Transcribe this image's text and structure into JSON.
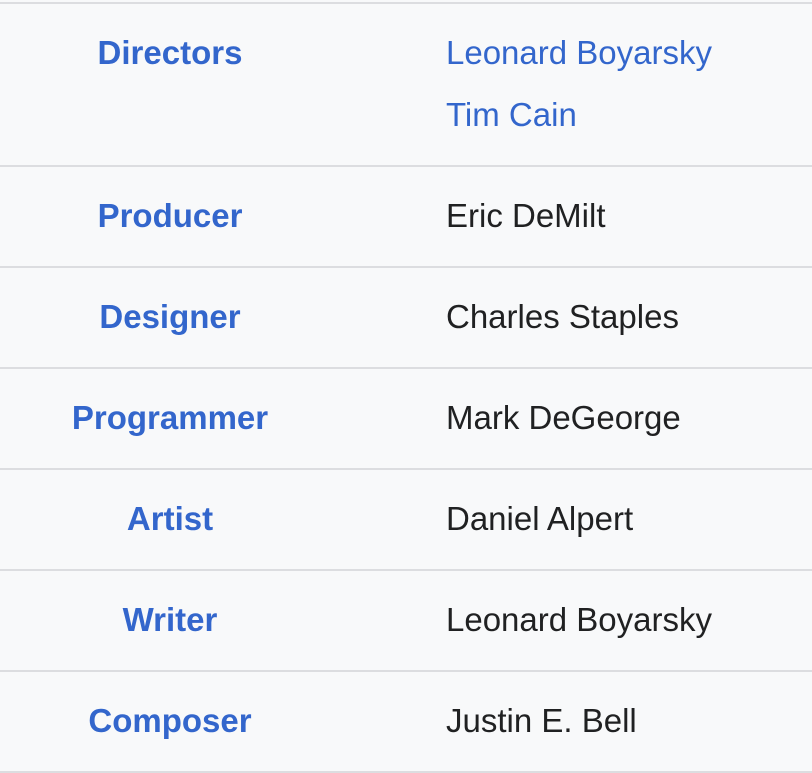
{
  "credits": [
    {
      "role": "Directors",
      "names": [
        "Leonard Boyarsky",
        "Tim Cain"
      ],
      "linked": true
    },
    {
      "role": "Producer",
      "names": [
        "Eric DeMilt"
      ],
      "linked": false
    },
    {
      "role": "Designer",
      "names": [
        "Charles Staples"
      ],
      "linked": false
    },
    {
      "role": "Programmer",
      "names": [
        "Mark DeGeorge"
      ],
      "linked": false
    },
    {
      "role": "Artist",
      "names": [
        "Daniel Alpert"
      ],
      "linked": false
    },
    {
      "role": "Writer",
      "names": [
        "Leonard Boyarsky"
      ],
      "linked": false
    },
    {
      "role": "Composer",
      "names": [
        "Justin E. Bell"
      ],
      "linked": false
    }
  ],
  "colors": {
    "label": "#3366cc",
    "link": "#3366cc",
    "text": "#202122",
    "background": "#f8f9fa",
    "border": "#dcdde0"
  }
}
